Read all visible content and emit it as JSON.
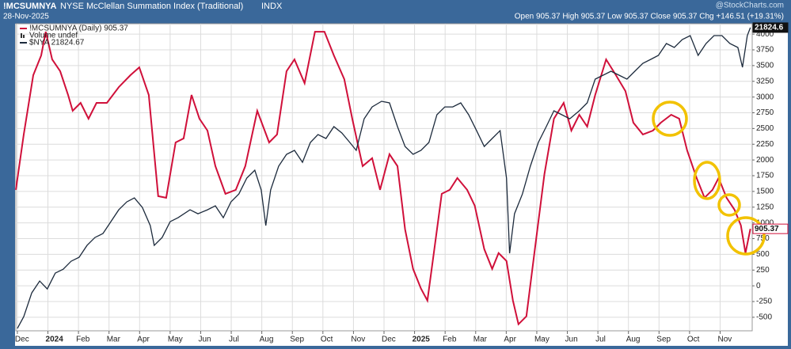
{
  "chart_data": {
    "type": "line",
    "symbol": "!MCSUMNYA",
    "title": "NYSE McClellan Summation Index (Traditional)",
    "exchange": "INDX",
    "date": "28-Nov-2025",
    "quote": "Open 905.37 High 905.37 Low 905.37 Close 905.37 Chg +146.51 (+19.31%)",
    "watermark": "@StockCharts.com",
    "volume_label": "Volume undef",
    "grid": true,
    "xlim": [
      -0.05,
      24.05
    ],
    "xticks": [
      {
        "value": 0,
        "label": "Dec"
      },
      {
        "value": 1,
        "label": "2024"
      },
      {
        "value": 2,
        "label": "Feb"
      },
      {
        "value": 3,
        "label": "Mar"
      },
      {
        "value": 4,
        "label": "Apr"
      },
      {
        "value": 5,
        "label": "May"
      },
      {
        "value": 6,
        "label": "Jun"
      },
      {
        "value": 7,
        "label": "Jul"
      },
      {
        "value": 8,
        "label": "Aug"
      },
      {
        "value": 9,
        "label": "Sep"
      },
      {
        "value": 10,
        "label": "Oct"
      },
      {
        "value": 11,
        "label": "Nov"
      },
      {
        "value": 12,
        "label": "Dec"
      },
      {
        "value": 13,
        "label": "2025"
      },
      {
        "value": 14,
        "label": "Feb"
      },
      {
        "value": 15,
        "label": "Mar"
      },
      {
        "value": 16,
        "label": "Apr"
      },
      {
        "value": 17,
        "label": "May"
      },
      {
        "value": 18,
        "label": "Jun"
      },
      {
        "value": 19,
        "label": "Jul"
      },
      {
        "value": 20,
        "label": "Aug"
      },
      {
        "value": 21,
        "label": "Sep"
      },
      {
        "value": 22,
        "label": "Oct"
      },
      {
        "value": 23,
        "label": "Nov"
      }
    ],
    "ylim": [
      -715,
      4165
    ],
    "yticks": [
      -500,
      -250,
      0,
      250,
      500,
      750,
      1000,
      1250,
      1500,
      1750,
      2000,
      2250,
      2500,
      2750,
      3000,
      3250,
      3500,
      3750,
      4000
    ],
    "y2lim": [
      15950,
      21900
    ],
    "series": [
      {
        "name": "!MCSUMNYA (Daily) 905.37",
        "color": "#d0103a",
        "tag": "905.37",
        "x": [
          -0.05,
          0.21,
          0.52,
          0.78,
          0.93,
          1.14,
          1.4,
          1.66,
          1.81,
          2.07,
          2.33,
          2.59,
          2.93,
          3.32,
          3.7,
          3.99,
          4.3,
          4.61,
          4.87,
          5.18,
          5.44,
          5.7,
          5.96,
          6.22,
          6.48,
          6.81,
          7.15,
          7.46,
          7.85,
          8.24,
          8.5,
          8.81,
          9.07,
          9.4,
          9.74,
          10.05,
          10.36,
          10.7,
          10.96,
          11.3,
          11.61,
          11.87,
          12.18,
          12.44,
          12.69,
          12.95,
          13.21,
          13.42,
          13.63,
          13.89,
          14.15,
          14.4,
          14.72,
          14.97,
          15.28,
          15.54,
          15.75,
          16.01,
          16.22,
          16.4,
          16.66,
          16.92,
          17.25,
          17.56,
          17.88,
          18.13,
          18.39,
          18.65,
          18.91,
          19.27,
          19.59,
          19.9,
          20.16,
          20.47,
          20.8,
          21.06,
          21.4,
          21.66,
          21.92,
          22.23,
          22.49,
          22.75,
          22.95,
          23.21,
          23.47,
          23.68,
          23.83,
          23.99
        ],
        "values": [
          1525,
          2405,
          3347,
          3661,
          4038,
          3598,
          3410,
          3033,
          2781,
          2907,
          2656,
          2907,
          2907,
          3158,
          3347,
          3472,
          3033,
          1425,
          1399,
          2279,
          2342,
          3033,
          2656,
          2467,
          1902,
          1462,
          1525,
          1902,
          2781,
          2279,
          2405,
          3410,
          3598,
          3221,
          4038,
          4038,
          3661,
          3284,
          2656,
          1902,
          2028,
          1525,
          2091,
          1902,
          897,
          269,
          -45,
          -234,
          520,
          1462,
          1525,
          1714,
          1525,
          1274,
          583,
          269,
          520,
          394,
          -234,
          -611,
          -485,
          520,
          1776,
          2656,
          2907,
          2467,
          2719,
          2530,
          3033,
          3598,
          3347,
          3095,
          2593,
          2405,
          2467,
          2593,
          2719,
          2656,
          2153,
          1714,
          1399,
          1525,
          1714,
          1399,
          1211,
          960,
          520,
          905.37
        ]
      },
      {
        "name": "$NYA 21824.67",
        "color": "#1c2a3c",
        "axis": "y2",
        "tag": "21824.6",
        "x": [
          0,
          0.21,
          0.47,
          0.73,
          0.98,
          1.24,
          1.5,
          1.76,
          2.02,
          2.28,
          2.54,
          2.8,
          3.06,
          3.32,
          3.58,
          3.83,
          4.09,
          4.35,
          4.48,
          4.74,
          5.0,
          5.26,
          5.65,
          5.91,
          6.22,
          6.48,
          6.74,
          6.99,
          7.25,
          7.51,
          7.77,
          7.98,
          8.13,
          8.29,
          8.55,
          8.81,
          9.07,
          9.33,
          9.59,
          9.84,
          10.1,
          10.36,
          10.62,
          10.88,
          11.09,
          11.35,
          11.61,
          11.92,
          12.18,
          12.44,
          12.69,
          12.95,
          13.21,
          13.47,
          13.73,
          13.99,
          14.25,
          14.51,
          14.77,
          15.03,
          15.28,
          15.54,
          15.8,
          16.01,
          16.11,
          16.27,
          16.53,
          16.79,
          17.05,
          17.31,
          17.56,
          17.82,
          18.08,
          18.39,
          18.65,
          18.91,
          19.17,
          19.43,
          19.69,
          19.95,
          20.21,
          20.47,
          20.73,
          20.98,
          21.24,
          21.5,
          21.76,
          22.02,
          22.28,
          22.54,
          22.8,
          23.06,
          23.32,
          23.58,
          23.73,
          23.89,
          23.99
        ],
        "values": [
          15994,
          16224,
          16684,
          16915,
          16761,
          17068,
          17143,
          17298,
          17375,
          17605,
          17758,
          17835,
          18065,
          18295,
          18448,
          18525,
          18341,
          17988,
          17605,
          17758,
          18065,
          18142,
          18295,
          18218,
          18295,
          18372,
          18142,
          18448,
          18602,
          18909,
          19062,
          18679,
          17988,
          18679,
          19139,
          19369,
          19446,
          19215,
          19599,
          19752,
          19676,
          19906,
          19783,
          19599,
          19446,
          20059,
          20289,
          20397,
          20366,
          19906,
          19522,
          19369,
          19446,
          19599,
          20136,
          20289,
          20289,
          20366,
          20136,
          19829,
          19522,
          19676,
          19829,
          18909,
          17452,
          18218,
          18602,
          19139,
          19599,
          19906,
          20213,
          20136,
          20059,
          20213,
          20366,
          20826,
          20903,
          20980,
          20903,
          20826,
          20980,
          21133,
          21210,
          21286,
          21517,
          21440,
          21593,
          21670,
          21286,
          21517,
          21670,
          21670,
          21517,
          21440,
          21056,
          21670,
          21824.67
        ]
      }
    ]
  }
}
